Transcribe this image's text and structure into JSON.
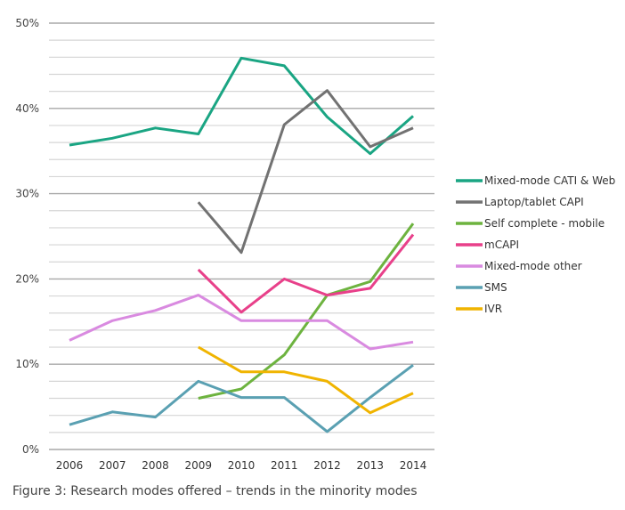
{
  "caption": "Figure 3: Research modes offered – trends in the minority modes",
  "chart_data": {
    "type": "line",
    "title": "",
    "xlabel": "",
    "ylabel": "",
    "ylim": [
      0,
      50
    ],
    "y_ticks": [
      "0%",
      "10%",
      "20%",
      "30%",
      "40%",
      "50%"
    ],
    "y_tick_values": [
      0,
      10,
      20,
      30,
      40,
      50
    ],
    "minor_grid_step": 2,
    "grid": true,
    "legend_position": "right",
    "categories": [
      "2006",
      "2007",
      "2008",
      "2009",
      "2010",
      "2011",
      "2012",
      "2013",
      "2014"
    ],
    "series": [
      {
        "name": "Mixed-mode CATI & Web",
        "color": "#1aa583",
        "values": [
          35.7,
          36.5,
          37.7,
          37.0,
          45.9,
          45.0,
          39.0,
          34.7,
          39.1
        ]
      },
      {
        "name": "Laptop/tablet CAPI",
        "color": "#727272",
        "values": [
          null,
          null,
          null,
          29.0,
          23.1,
          38.1,
          42.1,
          35.5,
          37.7
        ]
      },
      {
        "name": "Self complete - mobile",
        "color": "#6db33f",
        "values": [
          null,
          null,
          null,
          6.0,
          7.1,
          11.1,
          18.1,
          19.7,
          26.5
        ]
      },
      {
        "name": "mCAPI",
        "color": "#e8408a",
        "values": [
          null,
          null,
          null,
          21.1,
          16.1,
          20.0,
          18.1,
          18.9,
          25.2
        ]
      },
      {
        "name": "Mixed-mode other",
        "color": "#d98ae0",
        "values": [
          12.8,
          15.1,
          16.3,
          18.1,
          15.1,
          15.1,
          15.1,
          11.8,
          12.6
        ]
      },
      {
        "name": "SMS",
        "color": "#5aa0b2",
        "values": [
          2.9,
          4.4,
          3.8,
          8.0,
          6.1,
          6.1,
          2.1,
          6.1,
          9.9
        ]
      },
      {
        "name": "IVR",
        "color": "#f0b400",
        "values": [
          null,
          null,
          null,
          12.0,
          9.1,
          9.1,
          8.0,
          4.3,
          6.6
        ]
      }
    ]
  }
}
